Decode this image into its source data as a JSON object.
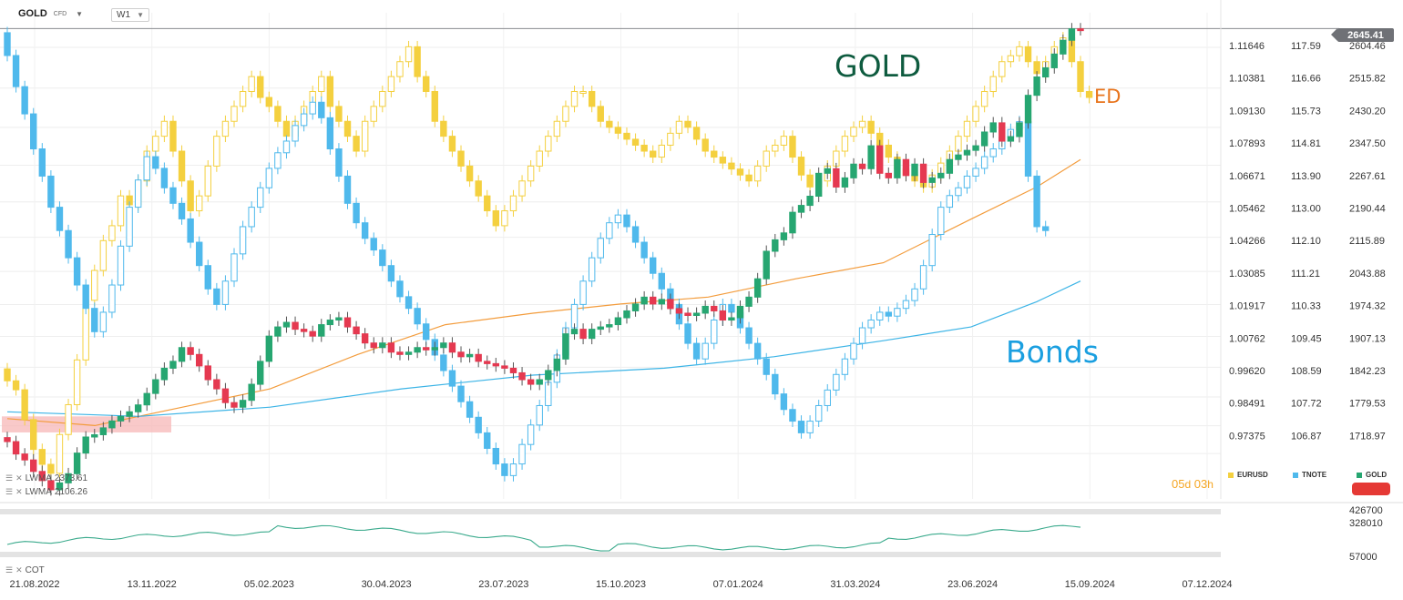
{
  "header": {
    "symbol": "GOLD",
    "instrument_type": "CFD",
    "timeframe": "W1"
  },
  "indicators": [
    {
      "name": "LWMA",
      "value": "2373.61"
    },
    {
      "name": "LWMA",
      "value": "2106.26"
    }
  ],
  "lower_indicator": {
    "name": "COT"
  },
  "countdown": {
    "days": "05",
    "day_unit": "d",
    "hours": "03",
    "hour_unit": "h"
  },
  "current_price": "2645.41",
  "annotations": {
    "gold": "GOLD",
    "ed": "ED",
    "bonds": "Bonds"
  },
  "legend": [
    {
      "label": "EURUSD",
      "color": "#f4d03f"
    },
    {
      "label": "TNOTE",
      "color": "#4fb9ec"
    },
    {
      "label": "GOLD",
      "color": "#26a671"
    }
  ],
  "colors": {
    "gold_up": "#26a671",
    "gold_down": "#e53950",
    "eurusd": "#f4d03f",
    "tnote": "#4fb9ec",
    "lwma_fast": "#f39c3c",
    "lwma_slow": "#3cb4e6",
    "cot": "#3aaa8c",
    "gold_label": "#0e5b3f",
    "ed_label": "#e8741c",
    "bonds_label": "#1a9fe0"
  },
  "chart_data": {
    "type": "candlestick",
    "timeframe": "weekly",
    "x_tick_labels": [
      "21.08.2022",
      "13.11.2022",
      "05.02.2023",
      "30.04.2023",
      "23.07.2023",
      "15.10.2023",
      "07.01.2024",
      "31.03.2024",
      "23.06.2024",
      "15.09.2024",
      "07.12.2024"
    ],
    "axes": {
      "eurusd": {
        "ticks": [
          "1.11646",
          "1.10381",
          "1.09130",
          "1.07893",
          "1.06671",
          "1.05462",
          "1.04266",
          "1.03085",
          "1.01917",
          "1.00762",
          "0.99620",
          "0.98491",
          "0.97375"
        ],
        "ylim": [
          0.9634,
          1.1264
        ]
      },
      "tnote": {
        "ticks": [
          "117.59",
          "116.66",
          "115.73",
          "114.81",
          "113.90",
          "113.00",
          "112.10",
          "111.21",
          "110.33",
          "109.45",
          "108.59",
          "107.72",
          "106.87"
        ],
        "ylim": [
          106.0,
          118.5
        ]
      },
      "gold": {
        "ticks": [
          "2604.46",
          "2515.82",
          "2430.20",
          "2347.50",
          "2267.61",
          "2190.44",
          "2115.89",
          "2043.88",
          "1974.32",
          "1907.13",
          "1842.23",
          "1779.53",
          "1718.97"
        ],
        "ylim": [
          1620,
          2680
        ]
      },
      "cot": {
        "ticks": [
          "426700",
          "328010",
          "57000"
        ]
      }
    },
    "series": [
      {
        "name": "GOLD",
        "axis": "gold",
        "close": [
          1745,
          1718,
          1705,
          1680,
          1660,
          1640,
          1655,
          1675,
          1720,
          1755,
          1760,
          1775,
          1790,
          1800,
          1810,
          1825,
          1850,
          1880,
          1905,
          1920,
          1950,
          1935,
          1910,
          1880,
          1860,
          1830,
          1820,
          1835,
          1870,
          1920,
          1975,
          1995,
          2005,
          1990,
          1985,
          1975,
          2000,
          2010,
          2015,
          1995,
          1980,
          1960,
          1950,
          1960,
          1940,
          1935,
          1940,
          1950,
          1945,
          1950,
          1960,
          1940,
          1930,
          1935,
          1920,
          1915,
          1910,
          1905,
          1895,
          1880,
          1870,
          1880,
          1900,
          1925,
          1980,
          1990,
          1970,
          1990,
          1995,
          2000,
          2015,
          2030,
          2045,
          2060,
          2045,
          2055,
          2035,
          2025,
          2020,
          2025,
          2040,
          2030,
          2010,
          2015,
          2040,
          2060,
          2100,
          2160,
          2185,
          2200,
          2245,
          2260,
          2280,
          2330,
          2340,
          2300,
          2320,
          2350,
          2340,
          2390,
          2330,
          2320,
          2360,
          2325,
          2350,
          2310,
          2320,
          2330,
          2360,
          2370,
          2380,
          2390,
          2420,
          2440,
          2400,
          2410,
          2440,
          2500,
          2540,
          2560,
          2590,
          2620,
          2645,
          2643
        ],
        "ohlc_note": "weekly closes, up/down candles"
      },
      {
        "name": "EURUSD",
        "axis": "eurusd",
        "close": [
          1.003,
          1.0,
          0.99,
          0.98,
          0.975,
          0.972,
          0.985,
          0.995,
          1.01,
          1.03,
          1.04,
          1.05,
          1.055,
          1.065,
          1.062,
          1.07,
          1.08,
          1.085,
          1.09,
          1.08,
          1.07,
          1.06,
          1.065,
          1.075,
          1.085,
          1.09,
          1.095,
          1.1,
          1.105,
          1.098,
          1.095,
          1.09,
          1.085,
          1.09,
          1.095,
          1.1,
          1.105,
          1.095,
          1.09,
          1.085,
          1.08,
          1.09,
          1.095,
          1.1,
          1.105,
          1.11,
          1.115,
          1.105,
          1.1,
          1.09,
          1.085,
          1.08,
          1.075,
          1.07,
          1.065,
          1.06,
          1.055,
          1.06,
          1.065,
          1.07,
          1.075,
          1.08,
          1.085,
          1.09,
          1.095,
          1.1,
          1.1,
          1.095,
          1.09,
          1.088,
          1.086,
          1.084,
          1.082,
          1.08,
          1.078,
          1.082,
          1.086,
          1.09,
          1.088,
          1.084,
          1.08,
          1.078,
          1.076,
          1.074,
          1.072,
          1.07,
          1.075,
          1.08,
          1.082,
          1.085,
          1.078,
          1.072,
          1.068,
          1.07,
          1.075,
          1.08,
          1.085,
          1.088,
          1.09,
          1.086,
          1.082,
          1.078,
          1.074,
          1.072,
          1.07,
          1.068,
          1.072,
          1.076,
          1.08,
          1.085,
          1.09,
          1.095,
          1.1,
          1.105,
          1.11,
          1.112,
          1.115,
          1.11,
          1.106,
          1.11,
          1.115,
          1.118,
          1.11,
          1.1,
          1.098
        ]
      },
      {
        "name": "TNOTE",
        "axis": "tnote",
        "close": [
          117.4,
          116.6,
          115.9,
          115.0,
          114.3,
          113.5,
          112.9,
          112.2,
          111.5,
          110.9,
          110.3,
          110.8,
          111.5,
          112.5,
          113.5,
          114.2,
          114.8,
          114.5,
          114.0,
          113.6,
          113.2,
          112.6,
          112.0,
          111.4,
          111.0,
          111.6,
          112.3,
          113.0,
          113.5,
          114.0,
          114.5,
          114.9,
          115.2,
          115.6,
          115.9,
          116.2,
          115.8,
          115.0,
          114.3,
          113.6,
          113.1,
          112.7,
          112.4,
          112.0,
          111.6,
          111.2,
          110.9,
          110.5,
          110.1,
          109.7,
          109.3,
          108.9,
          108.5,
          108.1,
          107.7,
          107.3,
          106.9,
          106.6,
          106.9,
          107.4,
          107.9,
          108.4,
          109.0,
          109.7,
          110.4,
          111.0,
          111.6,
          112.2,
          112.7,
          113.1,
          113.3,
          113.0,
          112.6,
          112.2,
          111.8,
          111.4,
          111.0,
          110.5,
          110.0,
          109.6,
          110.0,
          110.6,
          111.0,
          110.8,
          110.4,
          110.0,
          109.6,
          109.2,
          108.7,
          108.3,
          108.0,
          107.7,
          108.0,
          108.4,
          108.8,
          109.2,
          109.6,
          110.0,
          110.4,
          110.6,
          110.8,
          110.7,
          110.9,
          111.1,
          111.4,
          112.0,
          112.8,
          113.5,
          113.8,
          114.0,
          114.3,
          114.5,
          114.8,
          115.0,
          115.3,
          115.5,
          115.7,
          114.3,
          113.0,
          112.9
        ]
      },
      {
        "name": "LWMA fast",
        "axis": "gold",
        "points": [
          [
            0,
            1795
          ],
          [
            20,
            1780
          ],
          [
            40,
            1820
          ],
          [
            60,
            1860
          ],
          [
            80,
            1935
          ],
          [
            100,
            2000
          ],
          [
            120,
            2025
          ],
          [
            140,
            2045
          ],
          [
            160,
            2060
          ],
          [
            180,
            2100
          ],
          [
            200,
            2135
          ],
          [
            220,
            2230
          ],
          [
            235,
            2300
          ],
          [
            245,
            2360
          ]
        ]
      },
      {
        "name": "LWMA slow",
        "axis": "gold",
        "points": [
          [
            0,
            1810
          ],
          [
            30,
            1800
          ],
          [
            60,
            1820
          ],
          [
            90,
            1860
          ],
          [
            120,
            1890
          ],
          [
            150,
            1905
          ],
          [
            175,
            1930
          ],
          [
            200,
            1965
          ],
          [
            220,
            1995
          ],
          [
            235,
            2050
          ],
          [
            245,
            2095
          ]
        ]
      },
      {
        "name": "COT",
        "axis": "cot",
        "type": "line",
        "note": "weekly net positions, 57000 to 426700 range"
      }
    ],
    "horizontal_line": {
      "value": "2645.41",
      "axis": "gold"
    },
    "support_zone": {
      "axis": "gold",
      "from": 1765,
      "to": 1800,
      "color": "#f7b7b7"
    },
    "grid": true
  }
}
